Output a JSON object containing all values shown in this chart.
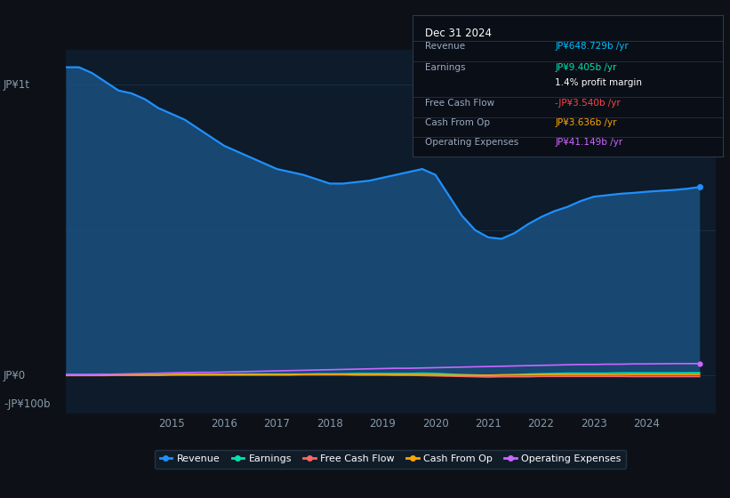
{
  "bg_color": "#0d1117",
  "plot_bg_color": "#0d1b2a",
  "info_box": {
    "bg": "#0a0e17",
    "border": "#2a3a4a",
    "title": "Dec 31 2024",
    "rows": [
      {
        "label": "Revenue",
        "value": "JP¥648.729b /yr",
        "color": "#00bfff",
        "separator": true
      },
      {
        "label": "Earnings",
        "value": "JP¥9.405b /yr",
        "color": "#00e5b0",
        "separator": false
      },
      {
        "label": "",
        "value": "1.4% profit margin",
        "color": "#ffffff",
        "separator": true
      },
      {
        "label": "Free Cash Flow",
        "value": "-JP¥3.540b /yr",
        "color": "#ff4444",
        "separator": true
      },
      {
        "label": "Cash From Op",
        "value": "JP¥3.636b /yr",
        "color": "#ffa500",
        "separator": true
      },
      {
        "label": "Operating Expenses",
        "value": "JP¥41.149b /yr",
        "color": "#cc66ff",
        "separator": false
      }
    ]
  },
  "years_x": [
    2013.0,
    2013.25,
    2013.5,
    2013.75,
    2014.0,
    2014.25,
    2014.5,
    2014.75,
    2015.0,
    2015.25,
    2015.5,
    2015.75,
    2016.0,
    2016.25,
    2016.5,
    2016.75,
    2017.0,
    2017.25,
    2017.5,
    2017.75,
    2018.0,
    2018.25,
    2018.5,
    2018.75,
    2019.0,
    2019.25,
    2019.5,
    2019.75,
    2020.0,
    2020.25,
    2020.5,
    2020.75,
    2021.0,
    2021.25,
    2021.5,
    2021.75,
    2022.0,
    2022.25,
    2022.5,
    2022.75,
    2023.0,
    2023.25,
    2023.5,
    2023.75,
    2024.0,
    2024.25,
    2024.5,
    2024.75,
    2025.0
  ],
  "revenue": [
    1060,
    1060,
    1040,
    1010,
    980,
    970,
    950,
    920,
    900,
    880,
    850,
    820,
    790,
    770,
    750,
    730,
    710,
    700,
    690,
    675,
    660,
    660,
    665,
    670,
    680,
    690,
    700,
    710,
    690,
    620,
    550,
    500,
    475,
    470,
    490,
    520,
    545,
    565,
    580,
    600,
    615,
    620,
    625,
    628,
    632,
    635,
    638,
    642,
    648
  ],
  "earnings": [
    3,
    3,
    3,
    4,
    4,
    4,
    4,
    3,
    3,
    4,
    4,
    4,
    4,
    5,
    5,
    5,
    5,
    5,
    5,
    6,
    6,
    6,
    7,
    7,
    7,
    7,
    7,
    8,
    7,
    5,
    3,
    2,
    1,
    2,
    3,
    5,
    6,
    7,
    8,
    8,
    8,
    8,
    9,
    9,
    9,
    9,
    9,
    9.2,
    9.4
  ],
  "free_cash_flow": [
    0,
    0,
    0,
    0,
    1,
    1,
    1,
    1,
    2,
    2,
    2,
    2,
    2,
    2,
    2,
    2,
    2,
    2,
    3,
    3,
    3,
    3,
    2,
    2,
    2,
    1,
    1,
    0,
    -1,
    -2,
    -3,
    -4,
    -5,
    -4,
    -4,
    -4,
    -3,
    -3,
    -3,
    -3,
    -3,
    -3,
    -3,
    -3.5,
    -3.5,
    -3.5,
    -3.5,
    -3.5,
    -3.54
  ],
  "cash_from_op": [
    2,
    2,
    2,
    2,
    2,
    2,
    2,
    2,
    3,
    3,
    3,
    3,
    3,
    3,
    3,
    3,
    3,
    3,
    4,
    4,
    4,
    4,
    3,
    3,
    3,
    3,
    3,
    3,
    2,
    1,
    1,
    1,
    1,
    2,
    2,
    2,
    3,
    3,
    3,
    3,
    3,
    3,
    3,
    3.5,
    3.5,
    3.5,
    3.5,
    3.5,
    3.636
  ],
  "operating_expenses": [
    3,
    3,
    3,
    4,
    5,
    6,
    7,
    8,
    9,
    10,
    11,
    11,
    12,
    13,
    14,
    15,
    16,
    17,
    18,
    19,
    20,
    21,
    22,
    23,
    24,
    25,
    25,
    26,
    27,
    28,
    29,
    30,
    31,
    32,
    33,
    34,
    35,
    36,
    37,
    38,
    38,
    39,
    39,
    40,
    40,
    40.5,
    41,
    41,
    41.149
  ],
  "revenue_color": "#1e90ff",
  "earnings_color": "#00e5b0",
  "fcf_color": "#ff6666",
  "cashfromop_color": "#ffa500",
  "opex_color": "#cc66ff",
  "grid_color": "#1a2f45",
  "xticks": [
    2015,
    2016,
    2017,
    2018,
    2019,
    2020,
    2021,
    2022,
    2023,
    2024
  ],
  "xlim": [
    2013.0,
    2025.3
  ],
  "ylim_b": [
    -130,
    1120
  ],
  "ylabel_top": "JP¥1t",
  "ylabel_zero": "JP¥0",
  "ylabel_neg": "-JP¥100b",
  "legend": [
    {
      "label": "Revenue",
      "color": "#1e90ff"
    },
    {
      "label": "Earnings",
      "color": "#00e5b0"
    },
    {
      "label": "Free Cash Flow",
      "color": "#ff6666"
    },
    {
      "label": "Cash From Op",
      "color": "#ffa500"
    },
    {
      "label": "Operating Expenses",
      "color": "#cc66ff"
    }
  ]
}
